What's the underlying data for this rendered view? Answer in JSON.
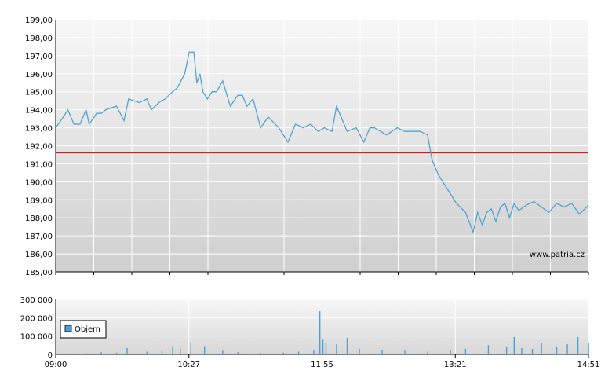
{
  "chart_data": [
    {
      "type": "line",
      "title": "",
      "xlabel": "",
      "ylabel": "",
      "ylim": [
        185,
        199
      ],
      "y_ticks": [
        "199,00",
        "198,00",
        "197,00",
        "196,00",
        "195,00",
        "194,00",
        "193,00",
        "192,00",
        "191,00",
        "190,00",
        "189,00",
        "188,00",
        "187,00",
        "186,00",
        "185,00"
      ],
      "reference_line": {
        "value": 191.6,
        "color": "#cc0000"
      },
      "watermark": "www.patria.cz",
      "grid": true,
      "series": [
        {
          "color": "#4fa3d1",
          "x": [
            "09:00",
            "09:05",
            "09:08",
            "09:12",
            "09:16",
            "09:20",
            "09:22",
            "09:27",
            "09:30",
            "09:33",
            "09:40",
            "09:45",
            "09:48",
            "09:55",
            "10:00",
            "10:03",
            "10:08",
            "10:12",
            "10:17",
            "10:20",
            "10:25",
            "10:28",
            "10:31",
            "10:33",
            "10:35",
            "10:37",
            "10:40",
            "10:43",
            "10:46",
            "10:50",
            "10:55",
            "11:00",
            "11:03",
            "11:06",
            "11:10",
            "11:15",
            "11:20",
            "11:27",
            "11:33",
            "11:38",
            "11:43",
            "11:48",
            "11:53",
            "11:57",
            "12:02",
            "12:05",
            "12:08",
            "12:12",
            "12:18",
            "12:23",
            "12:27",
            "12:30",
            "12:38",
            "12:45",
            "12:50",
            "12:55",
            "13:00",
            "13:05",
            "13:08",
            "13:12",
            "13:18",
            "13:24",
            "13:30",
            "13:35",
            "13:38",
            "13:41",
            "13:44",
            "13:47",
            "13:50",
            "13:53",
            "13:56",
            "13:59",
            "14:02",
            "14:05",
            "14:10",
            "14:15",
            "14:20",
            "14:25",
            "14:30",
            "14:35",
            "14:40",
            "14:45",
            "14:51"
          ],
          "values": [
            193.0,
            193.6,
            194.0,
            193.2,
            193.2,
            194.0,
            193.2,
            193.8,
            193.8,
            194.0,
            194.2,
            193.4,
            194.6,
            194.4,
            194.6,
            194.0,
            194.4,
            194.6,
            195.0,
            195.2,
            196.0,
            197.2,
            197.2,
            195.5,
            196.0,
            195.0,
            194.6,
            195.0,
            195.0,
            195.6,
            194.2,
            194.8,
            194.8,
            194.2,
            194.6,
            193.0,
            193.6,
            193.0,
            192.2,
            193.2,
            193.0,
            193.2,
            192.8,
            193.0,
            192.8,
            194.2,
            193.6,
            192.8,
            193.0,
            192.2,
            193.0,
            193.0,
            192.6,
            193.0,
            192.8,
            192.8,
            192.8,
            192.6,
            191.2,
            190.4,
            189.6,
            188.8,
            188.3,
            187.2,
            188.3,
            187.6,
            188.3,
            188.5,
            187.8,
            188.6,
            188.8,
            188.0,
            188.8,
            188.4,
            188.7,
            188.9,
            188.6,
            188.3,
            188.8,
            188.6,
            188.8,
            188.2,
            188.7
          ]
        }
      ]
    },
    {
      "type": "bar",
      "title": "",
      "xlabel": "",
      "ylabel": "",
      "ylim": [
        0,
        300000
      ],
      "y_ticks": [
        "300 000",
        "200 000",
        "100 000",
        "0"
      ],
      "x_ticks": [
        "09:00",
        "10:27",
        "11:55",
        "13:21",
        "14:51"
      ],
      "grid": true,
      "series": [
        {
          "name": "Objem",
          "color": "#4a9fd6",
          "x": [
            "09:00",
            "09:10",
            "09:20",
            "09:30",
            "09:40",
            "09:47",
            "10:00",
            "10:10",
            "10:17",
            "10:22",
            "10:29",
            "10:38",
            "10:50",
            "11:00",
            "11:15",
            "11:30",
            "11:40",
            "11:50",
            "11:54",
            "11:56",
            "11:58",
            "12:05",
            "12:12",
            "12:20",
            "12:35",
            "12:50",
            "13:05",
            "13:20",
            "13:30",
            "13:45",
            "13:57",
            "14:02",
            "14:07",
            "14:14",
            "14:20",
            "14:30",
            "14:37",
            "14:44",
            "14:51"
          ],
          "values": [
            8000,
            6000,
            10000,
            12000,
            9000,
            35000,
            15000,
            20000,
            45000,
            30000,
            60000,
            45000,
            20000,
            12000,
            8000,
            10000,
            15000,
            20000,
            235000,
            80000,
            60000,
            55000,
            90000,
            30000,
            25000,
            20000,
            15000,
            25000,
            30000,
            50000,
            40000,
            95000,
            35000,
            30000,
            60000,
            40000,
            55000,
            95000,
            60000
          ]
        }
      ]
    }
  ]
}
